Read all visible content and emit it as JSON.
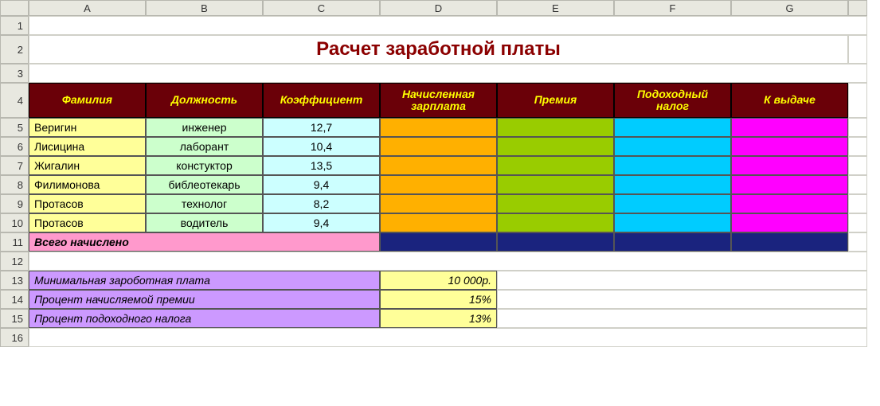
{
  "columns": [
    "A",
    "B",
    "C",
    "D",
    "E",
    "F",
    "G"
  ],
  "rownums": [
    "1",
    "2",
    "3",
    "4",
    "5",
    "6",
    "7",
    "8",
    "9",
    "10",
    "11",
    "12",
    "13",
    "14",
    "15",
    "16"
  ],
  "title": "Расчет заработной платы",
  "headers": {
    "a": "Фамилия",
    "b": "Должность",
    "c": "Коэффициент",
    "d": "Начисленная зарплата",
    "e": "Премия",
    "f": "Подоходный налог",
    "g": "К выдаче"
  },
  "rows": [
    {
      "name": "Веригин",
      "job": "инженер",
      "coef": "12,7"
    },
    {
      "name": "Лисицина",
      "job": "лаборант",
      "coef": "10,4"
    },
    {
      "name": "Жигалин",
      "job": "констуктор",
      "coef": "13,5"
    },
    {
      "name": "Филимонова",
      "job": "библеотекарь",
      "coef": "9,4"
    },
    {
      "name": "Протасов",
      "job": "технолог",
      "coef": "8,2"
    },
    {
      "name": "Протасов",
      "job": "водитель",
      "coef": "9,4"
    }
  ],
  "total_label": "Всего начислено",
  "params": [
    {
      "label": "Минимальная зароботная плата",
      "value": "10 000р."
    },
    {
      "label": "Процент начисляемой премии",
      "value": "15%"
    },
    {
      "label": "Процент подоходного налога",
      "value": "13%"
    }
  ],
  "colors": {
    "header_bg": "#6a0008",
    "header_fg": "#ffff00",
    "title_fg": "#8b0000",
    "name_bg": "#ffff99",
    "job_bg": "#ccffcc",
    "coef_bg": "#ccffff",
    "orange": "#ffb000",
    "green": "#99cc00",
    "cyan": "#00ccff",
    "magenta": "#ff00ff",
    "navy": "#1a237e",
    "pink": "#ff99cc",
    "purple": "#cc99ff",
    "yellow": "#ffff99"
  }
}
